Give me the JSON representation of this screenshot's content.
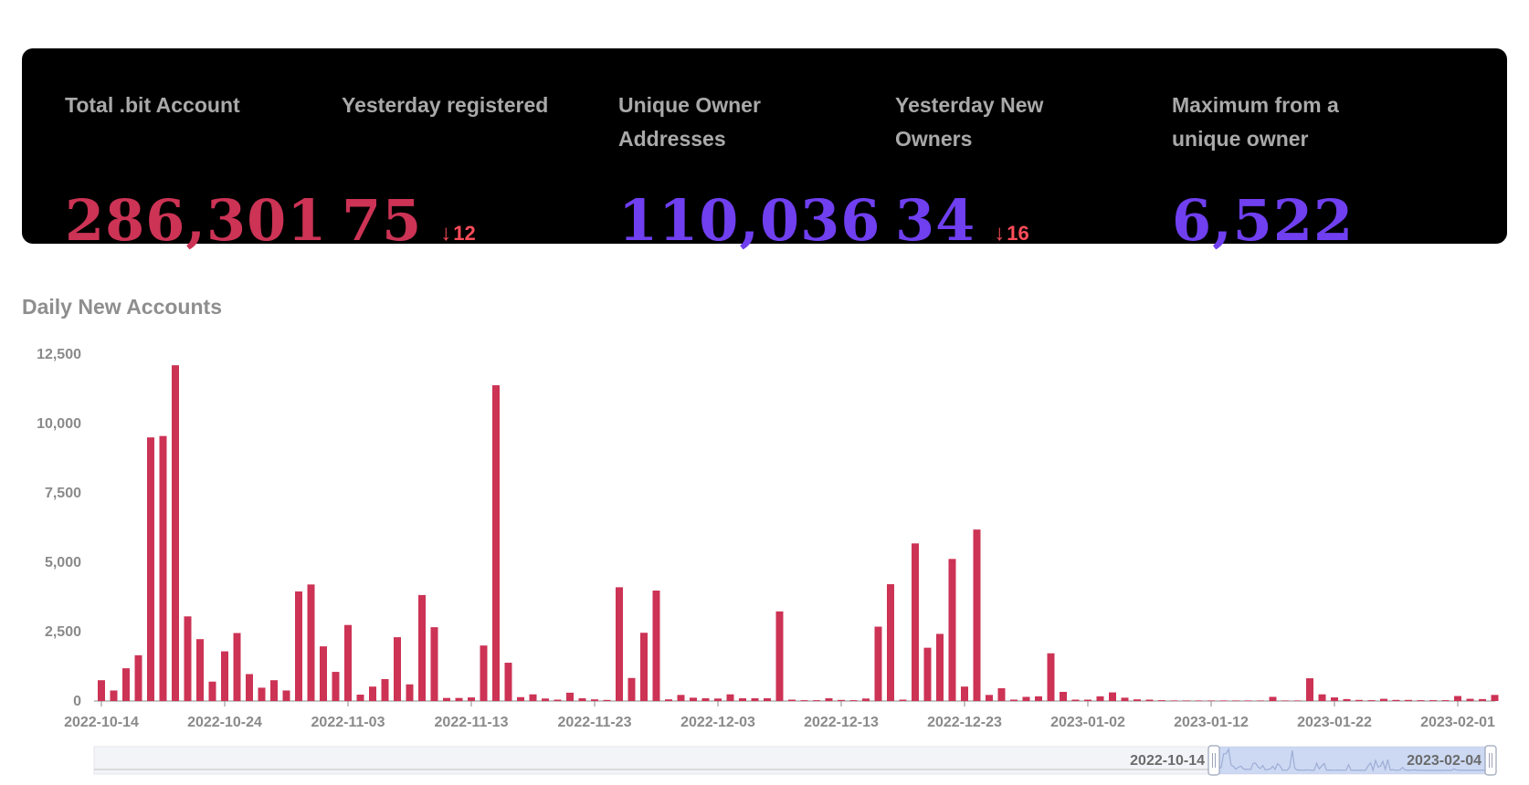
{
  "stats": [
    {
      "label": "Total .bit Account",
      "value": "286,301",
      "change": ""
    },
    {
      "label": "Yesterday registered",
      "value": "75",
      "change": "12"
    },
    {
      "label": "Unique Owner Addresses",
      "value": "110,036",
      "change": ""
    },
    {
      "label": "Yesterday New Owners",
      "value": "34",
      "change": "16"
    },
    {
      "label": "Maximum from a unique owner",
      "value": "6,522",
      "change": ""
    }
  ],
  "colors": {
    "accent_red": "#cc3355",
    "accent_purple": "#6f3ff0",
    "change_down": "#ff4d5a",
    "panel_bg": "#000000"
  },
  "chart_title": "Daily New Accounts",
  "chart_data": {
    "type": "bar",
    "title": "Daily New Accounts",
    "xlabel": "",
    "ylabel": "",
    "ylim": [
      0,
      12500
    ],
    "yticks": [
      "0",
      "2,500",
      "5,000",
      "7,500",
      "10,000",
      "12,500"
    ],
    "xticks": [
      "2022-10-14",
      "2022-10-24",
      "2022-11-03",
      "2022-11-13",
      "2022-11-23",
      "2022-12-03",
      "2022-12-13",
      "2022-12-23",
      "2023-01-02",
      "2023-01-12",
      "2023-01-22",
      "2023-02-01"
    ],
    "x": [
      "2022-10-14",
      "2022-10-15",
      "2022-10-16",
      "2022-10-17",
      "2022-10-18",
      "2022-10-19",
      "2022-10-20",
      "2022-10-21",
      "2022-10-22",
      "2022-10-23",
      "2022-10-24",
      "2022-10-25",
      "2022-10-26",
      "2022-10-27",
      "2022-10-28",
      "2022-10-29",
      "2022-10-30",
      "2022-10-31",
      "2022-11-01",
      "2022-11-02",
      "2022-11-03",
      "2022-11-04",
      "2022-11-05",
      "2022-11-06",
      "2022-11-07",
      "2022-11-08",
      "2022-11-09",
      "2022-11-10",
      "2022-11-11",
      "2022-11-12",
      "2022-11-13",
      "2022-11-14",
      "2022-11-15",
      "2022-11-16",
      "2022-11-17",
      "2022-11-18",
      "2022-11-19",
      "2022-11-20",
      "2022-11-21",
      "2022-11-22",
      "2022-11-23",
      "2022-11-24",
      "2022-11-25",
      "2022-11-26",
      "2022-11-27",
      "2022-11-28",
      "2022-11-29",
      "2022-11-30",
      "2022-12-01",
      "2022-12-02",
      "2022-12-03",
      "2022-12-04",
      "2022-12-05",
      "2022-12-06",
      "2022-12-07",
      "2022-12-08",
      "2022-12-09",
      "2022-12-10",
      "2022-12-11",
      "2022-12-12",
      "2022-12-13",
      "2022-12-14",
      "2022-12-15",
      "2022-12-16",
      "2022-12-17",
      "2022-12-18",
      "2022-12-19",
      "2022-12-20",
      "2022-12-21",
      "2022-12-22",
      "2022-12-23",
      "2022-12-24",
      "2022-12-25",
      "2022-12-26",
      "2022-12-27",
      "2022-12-28",
      "2022-12-29",
      "2022-12-30",
      "2022-12-31",
      "2023-01-01",
      "2023-01-02",
      "2023-01-03",
      "2023-01-04",
      "2023-01-05",
      "2023-01-06",
      "2023-01-07",
      "2023-01-08",
      "2023-01-09",
      "2023-01-10",
      "2023-01-11",
      "2023-01-12",
      "2023-01-13",
      "2023-01-14",
      "2023-01-15",
      "2023-01-16",
      "2023-01-17",
      "2023-01-18",
      "2023-01-19",
      "2023-01-20",
      "2023-01-21",
      "2023-01-22",
      "2023-01-23",
      "2023-01-24",
      "2023-01-25",
      "2023-01-26",
      "2023-01-27",
      "2023-01-28",
      "2023-01-29",
      "2023-01-30",
      "2023-01-31",
      "2023-02-01",
      "2023-02-02",
      "2023-02-03",
      "2023-02-04"
    ],
    "series": [
      {
        "values": [
          750,
          380,
          1180,
          1650,
          9500,
          9550,
          12100,
          3050,
          2230,
          700,
          1790,
          2450,
          970,
          480,
          750,
          380,
          3950,
          4200,
          1970,
          1050,
          2740,
          230,
          520,
          790,
          2300,
          600,
          3820,
          2660,
          110,
          110,
          130,
          2000,
          11380,
          1380,
          140,
          240,
          90,
          50,
          300,
          100,
          60,
          40,
          4100,
          830,
          2460,
          3980,
          60,
          220,
          120,
          100,
          90,
          240,
          100,
          100,
          100,
          3230,
          50,
          30,
          30,
          100,
          40,
          30,
          90,
          2680,
          4210,
          50,
          5680,
          1920,
          2420,
          5120,
          520,
          6180,
          220,
          460,
          50,
          150,
          170,
          1720,
          330,
          50,
          50,
          170,
          310,
          120,
          60,
          50,
          30,
          20,
          20,
          20,
          20,
          20,
          20,
          20,
          20,
          150,
          20,
          20,
          820,
          240,
          130,
          70,
          40,
          30,
          80,
          40,
          40,
          30,
          30,
          30,
          180,
          80,
          70,
          220
        ]
      }
    ],
    "zoom": {
      "start_label": "2022-10-14",
      "end_label": "2023-02-04"
    }
  }
}
